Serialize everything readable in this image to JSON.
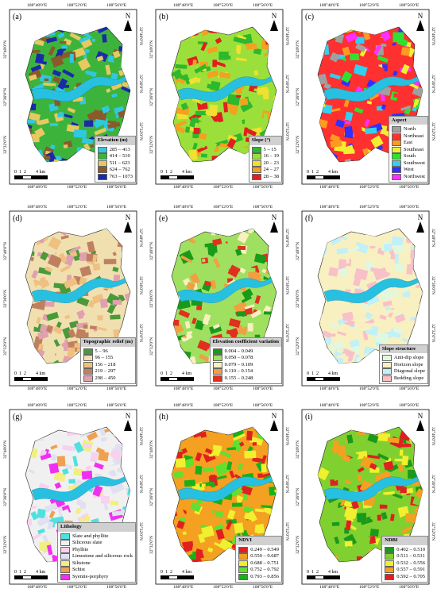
{
  "ticks": {
    "top": [
      "108°48'0\"E",
      "108°52'0\"E",
      "108°56'0\"E"
    ],
    "left": [
      "32°40'0\"N",
      "32°36'0\"N",
      "32°32'0\"N"
    ],
    "right": [
      "32°40'0\"N",
      "32°36'0\"N",
      "32°32'0\"N"
    ],
    "bottom": [
      "108°48'0\"E",
      "108°52'0\"E",
      "108°56'0\"E"
    ]
  },
  "scale": {
    "labels": "0  1  2        4 km"
  },
  "north_label": "N",
  "panels": [
    {
      "id": "a",
      "label": "(a)",
      "legend_title": "Elevation (m)",
      "items": [
        {
          "label": "285 – 413",
          "color": "#30c8e0"
        },
        {
          "label": "414 – 510",
          "color": "#3cb43c"
        },
        {
          "label": "511 – 623",
          "color": "#e8c860"
        },
        {
          "label": "624 – 762",
          "color": "#8a5a2a"
        },
        {
          "label": "763 – 1073",
          "color": "#1a2aa8"
        }
      ]
    },
    {
      "id": "b",
      "label": "(b)",
      "legend_title": "Slope (°)",
      "items": [
        {
          "label": "5 – 15",
          "color": "#2db82d"
        },
        {
          "label": "16 – 19",
          "color": "#9be03a"
        },
        {
          "label": "20 – 23",
          "color": "#f0e030"
        },
        {
          "label": "24 – 27",
          "color": "#f4a020"
        },
        {
          "label": "28 – 38",
          "color": "#e02020"
        }
      ]
    },
    {
      "id": "c",
      "label": "(c)",
      "legend_title": "Aspect",
      "items": [
        {
          "label": "North",
          "color": "#a0a0a0"
        },
        {
          "label": "Northeast",
          "color": "#ff3030"
        },
        {
          "label": "East",
          "color": "#ff9a20"
        },
        {
          "label": "Southeast",
          "color": "#f0f030"
        },
        {
          "label": "South",
          "color": "#30e030"
        },
        {
          "label": "Southwest",
          "color": "#30d0f0"
        },
        {
          "label": "West",
          "color": "#3030ff"
        },
        {
          "label": "Northwest",
          "color": "#ff30ff"
        }
      ]
    },
    {
      "id": "d",
      "label": "(d)",
      "legend_title": "Topographic relief (m)",
      "items": [
        {
          "label": "5 – 96",
          "color": "#4a9a3a"
        },
        {
          "label": "96 – 155",
          "color": "#f0e0b0"
        },
        {
          "label": "156 – 218",
          "color": "#f0c080"
        },
        {
          "label": "219 – 297",
          "color": "#c08060"
        },
        {
          "label": "298 – 450",
          "color": "#e0a0b0"
        }
      ]
    },
    {
      "id": "e",
      "label": "(e)",
      "legend_title": "Elevation coefficient variation",
      "items": [
        {
          "label": "0.004 – 0.049",
          "color": "#1a9a1a"
        },
        {
          "label": "0.050 – 0.078",
          "color": "#a0e060"
        },
        {
          "label": "0.079 – 0.109",
          "color": "#f8f0c0"
        },
        {
          "label": "0.110 – 0.154",
          "color": "#f0a040"
        },
        {
          "label": "0.155 – 0.248",
          "color": "#e03020"
        }
      ]
    },
    {
      "id": "f",
      "label": "(f)",
      "legend_title": "Slope structure",
      "items": [
        {
          "label": "Anti-dip slope",
          "color": "#e0f8e0"
        },
        {
          "label": "Horizon slope",
          "color": "#f8f0c0"
        },
        {
          "label": "Diagonal slope",
          "color": "#c0f0f8"
        },
        {
          "label": "Bedding slope",
          "color": "#f8c0c8"
        }
      ]
    },
    {
      "id": "g",
      "label": "(g)",
      "legend_title": "Lithology",
      "items": [
        {
          "label": "Slate and phyllite",
          "color": "#50e0e0"
        },
        {
          "label": "Siliceous slate",
          "color": "#f0f0f0"
        },
        {
          "label": "Phyllite",
          "color": "#f8d0f0"
        },
        {
          "label": "Limestone and siliceous rock",
          "color": "#e0e0f0"
        },
        {
          "label": "Siltstone",
          "color": "#f0f080"
        },
        {
          "label": "Schist",
          "color": "#f0a050"
        },
        {
          "label": "Syenite-porphyry",
          "color": "#f030f0"
        }
      ]
    },
    {
      "id": "h",
      "label": "(h)",
      "legend_title": "NDVI",
      "items": [
        {
          "label": "0.249 – 0.549",
          "color": "#e02020"
        },
        {
          "label": "0.550 – 0.687",
          "color": "#f4a020"
        },
        {
          "label": "0.688 – 0.751",
          "color": "#f0f030"
        },
        {
          "label": "0.752 – 0.792",
          "color": "#60e030"
        },
        {
          "label": "0.793 – 0.856",
          "color": "#1ab01a"
        }
      ]
    },
    {
      "id": "i",
      "label": "(i)",
      "legend_title": "NDBI",
      "items": [
        {
          "label": "0.402 – 0.510",
          "color": "#1a9a1a"
        },
        {
          "label": "0.511 – 0.531",
          "color": "#80d030"
        },
        {
          "label": "0.532 – 0.556",
          "color": "#f0f030"
        },
        {
          "label": "0.557 – 0.591",
          "color": "#f4a020"
        },
        {
          "label": "0.592 – 0.705",
          "color": "#e02020"
        }
      ]
    }
  ]
}
